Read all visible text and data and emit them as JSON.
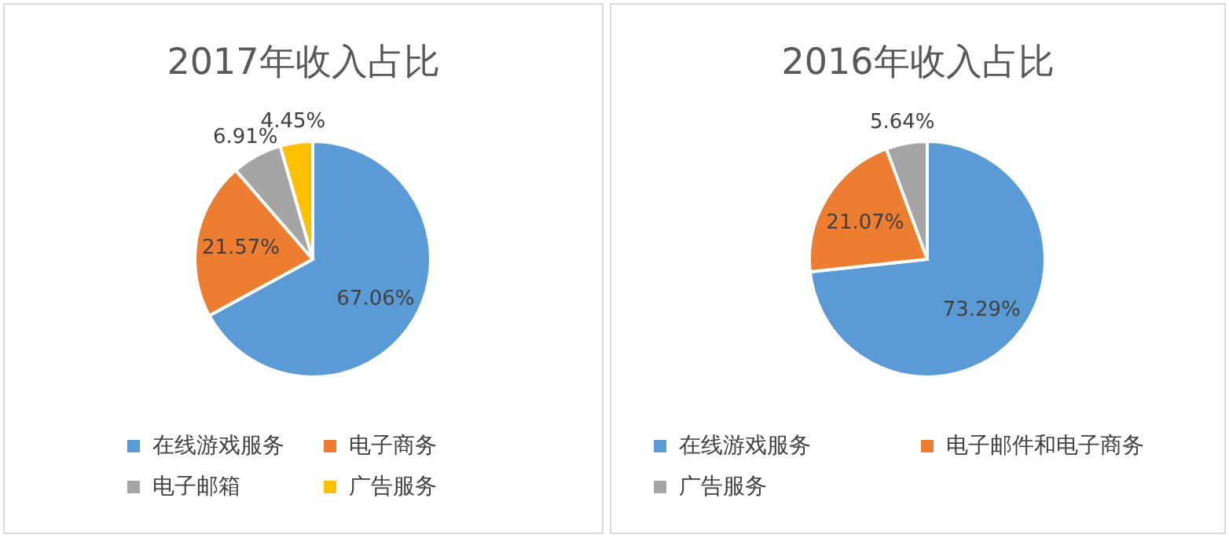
{
  "chart_data": [
    {
      "type": "pie",
      "title": "2017年收入占比",
      "categories": [
        "在线游戏服务",
        "电子商务",
        "电子邮箱",
        "广告服务"
      ],
      "values": [
        67.06,
        21.57,
        6.91,
        4.45
      ],
      "colors": [
        "#5b9bd5",
        "#ed7d31",
        "#a5a5a5",
        "#ffc000"
      ],
      "value_labels": [
        "67.06%",
        "21.57%",
        "6.91%",
        "4.45%"
      ],
      "legend": "bottom"
    },
    {
      "type": "pie",
      "title": "2016年收入占比",
      "categories": [
        "在线游戏服务",
        "电子邮件和电子商务",
        "广告服务"
      ],
      "values": [
        73.29,
        21.07,
        5.64
      ],
      "colors": [
        "#5b9bd5",
        "#ed7d31",
        "#a5a5a5"
      ],
      "value_labels": [
        "73.29%",
        "21.07%",
        "5.64%"
      ],
      "legend": "bottom"
    }
  ]
}
